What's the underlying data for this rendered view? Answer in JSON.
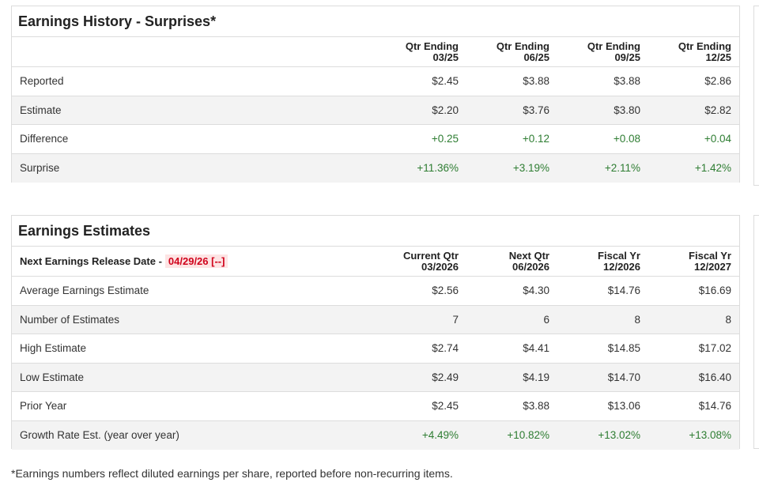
{
  "history": {
    "title": "Earnings History - Surprises*",
    "headers": [
      {
        "l1": "Qtr Ending",
        "l2": "03/25"
      },
      {
        "l1": "Qtr Ending",
        "l2": "06/25"
      },
      {
        "l1": "Qtr Ending",
        "l2": "09/25"
      },
      {
        "l1": "Qtr Ending",
        "l2": "12/25"
      }
    ],
    "rows": [
      {
        "label": "Reported",
        "values": [
          "$2.45",
          "$3.88",
          "$3.88",
          "$2.86"
        ]
      },
      {
        "label": "Estimate",
        "values": [
          "$2.20",
          "$3.76",
          "$3.80",
          "$2.82"
        ]
      },
      {
        "label": "Difference",
        "values": [
          "+0.25",
          "+0.12",
          "+0.08",
          "+0.04"
        ]
      },
      {
        "label": "Surprise",
        "values": [
          "+11.36%",
          "+3.19%",
          "+2.11%",
          "+1.42%"
        ]
      }
    ]
  },
  "estimates": {
    "title": "Earnings Estimates",
    "release_label": "Next Earnings Release Date -",
    "release_date": "04/29/26 [--]",
    "headers": [
      {
        "l1": "Current Qtr",
        "l2": "03/2026"
      },
      {
        "l1": "Next Qtr",
        "l2": "06/2026"
      },
      {
        "l1": "Fiscal Yr",
        "l2": "12/2026"
      },
      {
        "l1": "Fiscal Yr",
        "l2": "12/2027"
      }
    ],
    "rows": [
      {
        "label": "Average Earnings Estimate",
        "values": [
          "$2.56",
          "$4.30",
          "$14.76",
          "$16.69"
        ]
      },
      {
        "label": "Number of Estimates",
        "values": [
          "7",
          "6",
          "8",
          "8"
        ]
      },
      {
        "label": "High Estimate",
        "values": [
          "$2.74",
          "$4.41",
          "$14.85",
          "$17.02"
        ]
      },
      {
        "label": "Low Estimate",
        "values": [
          "$2.49",
          "$4.19",
          "$14.70",
          "$16.40"
        ]
      },
      {
        "label": "Prior Year",
        "values": [
          "$2.45",
          "$3.88",
          "$13.06",
          "$14.76"
        ]
      },
      {
        "label": "Growth Rate Est. (year over year)",
        "values": [
          "+4.49%",
          "+10.82%",
          "+13.02%",
          "+13.08%"
        ]
      }
    ]
  },
  "footnote": "*Earnings numbers reflect diluted earnings per share, reported before non-recurring items.",
  "colors": {
    "positive": "#2e7d32",
    "release_date_text": "#d0021b",
    "release_date_bg": "#fde4e4"
  }
}
